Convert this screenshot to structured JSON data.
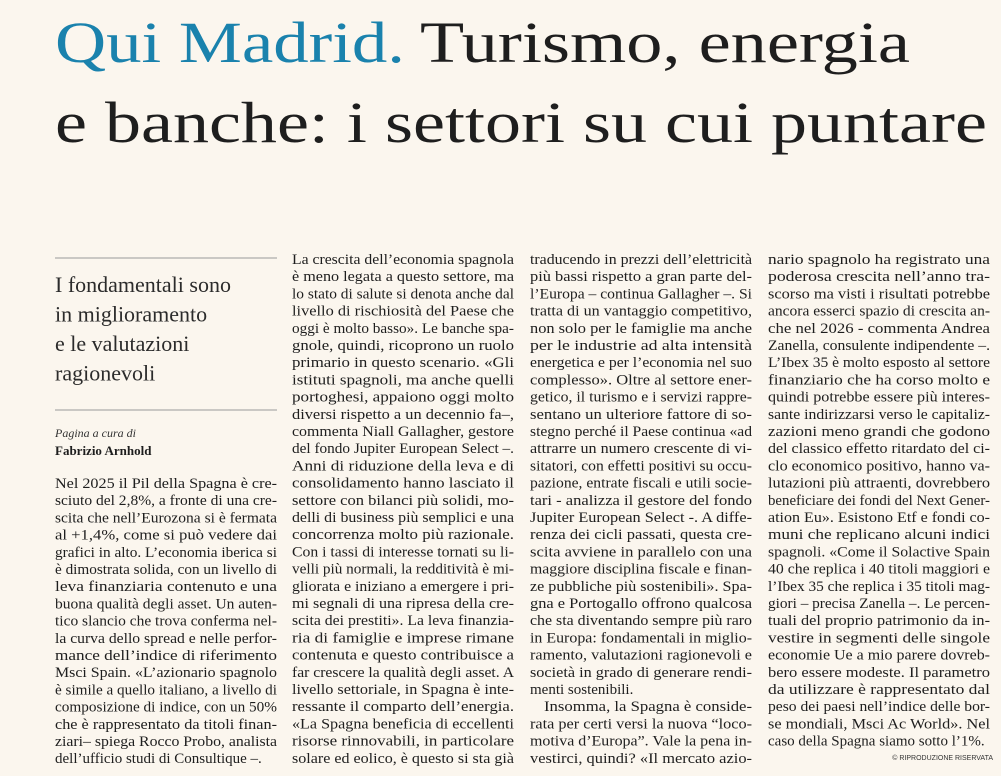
{
  "headline": {
    "kicker": "Qui Madrid.",
    "title_line1": "Turismo, energia",
    "title_line2": "e banche: i settori su cui puntare"
  },
  "sidebar": {
    "subtitle": [
      "I fondamentali sono",
      "in miglioramento",
      "e le valutazioni",
      "ragionevoli"
    ],
    "byline_label": "Pagina a cura di",
    "author": "Fabrizio Arnhold"
  },
  "columns": [
    [
      "Nel 2025 il Pil della Spagna è cre-",
      "sciuto del 2,8%, a fronte di una cre-",
      "scita che nell’Eurozona si è fermata",
      "al +1,4%, come si può vedere dai",
      "grafici in alto. L’economia iberica si",
      "è dimostrata solida, con un livello di",
      "leva finanziaria contenuto e una",
      "buona qualità degli asset. Un auten-",
      "tico slancio che trova conferma nel-",
      "la curva dello spread e nelle perfor-",
      "mance dell’indice di riferimento",
      "Msci Spain. «L’azionario spagnolo",
      "è simile a quello italiano, a livello di",
      "composizione di indice, con un 50%",
      "che è rappresentato da titoli finan-",
      "ziari– spiega Rocco Probo, analista",
      "dell’ufficio studi di Consultique –."
    ],
    [
      "La crescita dell’economia spagnola",
      "è meno legata a questo settore, ma",
      "lo stato di salute si denota anche dal",
      "livello di rischiosità del Paese che",
      "oggi è molto basso». Le banche spa-",
      "gnole, quindi, ricoprono un ruolo",
      "primario in questo scenario. «Gli",
      "istituti spagnoli, ma anche quelli",
      "portoghesi, appaiono oggi molto",
      "diversi rispetto a un decennio fa–,",
      "commenta Niall Gallagher, gestore",
      "del fondo Jupiter European Select –.",
      "Anni di riduzione della leva e di",
      "consolidamento hanno lasciato il",
      "settore con bilanci più solidi, mo-",
      "delli di business più semplici e una",
      "concorrenza molto più razionale.",
      "Con i tassi di interesse tornati su li-",
      "velli più normali, la redditività è mi-",
      "gliorata e iniziano a emergere i pri-",
      "mi segnali di una ripresa della cre-",
      "scita dei prestiti». La leva finanzia-",
      "ria di famiglie e imprese rimane",
      "contenuta e questo contribuisce a",
      "far crescere la qualità degli asset. A",
      "livello settoriale, in Spagna è inte-",
      "ressante il comparto dell’energia.",
      "«La Spagna beneficia di eccellenti",
      "risorse rinnovabili, in particolare",
      "solare ed eolico, è questo si sta già"
    ],
    [
      "traducendo in prezzi dell’elettricità",
      "più bassi rispetto a gran parte del-",
      "l’Europa – continua Gallagher –. Si",
      "tratta di un vantaggio competitivo,",
      "non solo per le famiglie ma anche",
      "per le industrie ad alta intensità",
      "energetica e per l’economia nel suo",
      "complesso». Oltre al settore ener-",
      "getico, il turismo e i servizi rappre-",
      "sentano un ulteriore fattore di so-",
      "stegno perché il Paese continua «ad",
      "attrarre un numero crescente di vi-",
      "sitatori, con effetti positivi su occu-",
      "pazione, entrate fiscali e utili socie-",
      "tari - analizza il gestore del fondo",
      "Jupiter European Select -. A diffe-",
      "renza dei cicli passati, questa cre-",
      "scita avviene in parallelo con una",
      "maggiore disciplina fiscale e finan-",
      "ze pubbliche più sostenibili». Spa-",
      "gna e Portogallo offrono qualcosa",
      "che sta diventando sempre più raro",
      "in Europa: fondamentali in miglio-",
      "ramento, valutazioni ragionevoli e",
      "società in grado di generare rendi-",
      "menti sostenibili.",
      "Insomma, la Spagna è conside-",
      "rata per certi versi la nuova “loco-",
      "motiva d’Europa”. Vale la pena in-",
      "vestirci, quindi? «Il mercato azio-"
    ],
    [
      "nario spagnolo ha registrato una",
      "poderosa crescita nell’anno tra-",
      "scorso ma visti i risultati potrebbe",
      "ancora esserci spazio di crescita an-",
      "che nel 2026 - commenta Andrea",
      "Zanella, consulente indipendente –.",
      "L’Ibex 35 è molto esposto al settore",
      "finanziario che ha corso molto e",
      "quindi potrebbe essere più interes-",
      "sante indirizzarsi verso le capitaliz-",
      "zazioni meno grandi che godono",
      "del classico effetto ritardato del ci-",
      "clo economico positivo, hanno va-",
      "lutazioni più attraenti, dovrebbero",
      "beneficiare dei fondi del Next Gener-",
      "ation Eu». Esistono Etf e fondi co-",
      "muni che replicano alcuni indici",
      "spagnoli. «Come il Solactive Spain",
      "40 che replica i 40 titoli maggiori e",
      "l’Ibex 35 che replica i 35 titoli mag-",
      "giori – precisa Zanella –. Le percen-",
      "tuali del proprio patrimonio da in-",
      "vestire in segmenti delle singole",
      "economie Ue a mio parere dovreb-",
      "bero essere modeste. Il parametro",
      "da utilizzare è rappresentato dal",
      "peso dei paesi nell’indice delle bor-",
      "se mondiali, Msci Ac World». Nel",
      "caso della Spagna siamo sotto l’1%."
    ]
  ],
  "copyright": "© RIPRODUZIONE RISERVATA"
}
